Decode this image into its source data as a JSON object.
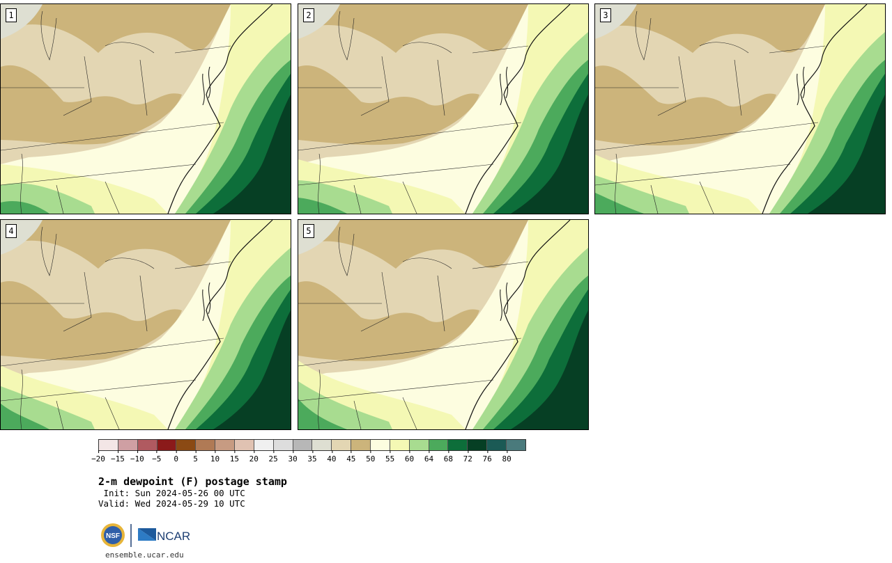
{
  "title": "2-m dewpoint (F) postage stamp",
  "init": " Init: Sun 2024-05-26 00 UTC",
  "valid": "Valid: Wed 2024-05-29 10 UTC",
  "footer": "ensemble.ucar.edu",
  "logos": {
    "nsf_text": "NSF",
    "ncar_text": "NCAR"
  },
  "panels": [
    {
      "label": "1"
    },
    {
      "label": "2"
    },
    {
      "label": "3"
    },
    {
      "label": "4"
    },
    {
      "label": "5"
    }
  ],
  "colorbar": {
    "colors": [
      "#f3e6e6",
      "#cf9fa3",
      "#b05a60",
      "#8b1a1a",
      "#8b4a14",
      "#b07a55",
      "#c79b82",
      "#e0c2b2",
      "#f0f0f0",
      "#dddddd",
      "#b7b7b7",
      "#dedfd2",
      "#e3d6b3",
      "#ccb47b",
      "#fdfde0",
      "#f4f8b4",
      "#a8dc90",
      "#4caa5c",
      "#0d6e3a",
      "#063f24",
      "#1b5a55",
      "#4a7a7c"
    ],
    "ticks": [
      "−20",
      "−15",
      "−10",
      "−5",
      "0",
      "5",
      "10",
      "15",
      "20",
      "25",
      "30",
      "35",
      "40",
      "45",
      "50",
      "55",
      "60",
      "64",
      "68",
      "72",
      "76",
      "80"
    ]
  },
  "map_colors": {
    "dry_tan": "#ccb47b",
    "light_tan": "#e3d6b3",
    "gray": "#dedfd2",
    "cream": "#fdfde0",
    "pale_yellow": "#f4f8b4",
    "light_green": "#a8dc90",
    "mid_green": "#4caa5c",
    "dark_green": "#0d6e3a",
    "deep_green": "#063f24"
  }
}
